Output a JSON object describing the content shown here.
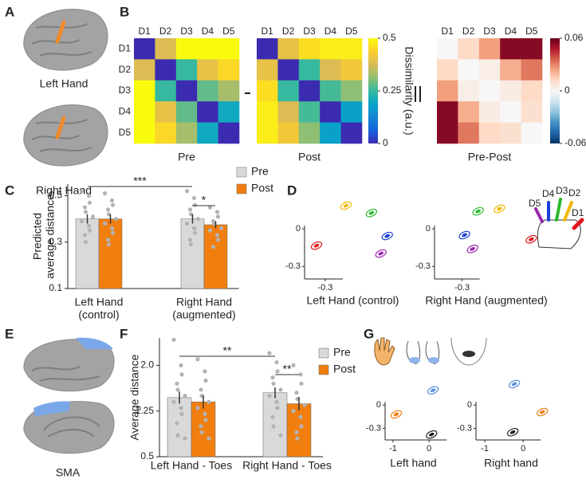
{
  "panel_letters": [
    "A",
    "B",
    "C",
    "D",
    "E",
    "F",
    "G"
  ],
  "brain_labels": [
    "Left Hand",
    "Right Hand",
    "SMA"
  ],
  "chart_data": [
    {
      "type": "heatmap",
      "title": "Pre",
      "categories": [
        "D1",
        "D2",
        "D3",
        "D4",
        "D5"
      ],
      "row_categories": [
        "D1",
        "D2",
        "D3",
        "D4",
        "D5"
      ],
      "values": [
        [
          0,
          0.38,
          0.5,
          0.5,
          0.5
        ],
        [
          0.38,
          0,
          0.25,
          0.4,
          0.45
        ],
        [
          0.5,
          0.25,
          0,
          0.28,
          0.33
        ],
        [
          0.5,
          0.4,
          0.28,
          0,
          0.2
        ],
        [
          0.5,
          0.45,
          0.33,
          0.2,
          0
        ]
      ],
      "zlim": [
        0,
        0.5
      ],
      "colormap": [
        "#3b2bb0",
        "#1463e0",
        "#1485d4",
        "#08a5c8",
        "#36b99e",
        "#92bf73",
        "#d9ba56",
        "#fcce2e",
        "#f9fb0e"
      ]
    },
    {
      "type": "heatmap",
      "title": "Post",
      "categories": [
        "D1",
        "D2",
        "D3",
        "D4",
        "D5"
      ],
      "values": [
        [
          0,
          0.4,
          0.46,
          0.48,
          0.48
        ],
        [
          0.4,
          0,
          0.25,
          0.38,
          0.42
        ],
        [
          0.46,
          0.25,
          0,
          0.26,
          0.31
        ],
        [
          0.48,
          0.38,
          0.26,
          0,
          0.18
        ],
        [
          0.48,
          0.42,
          0.31,
          0.18,
          0
        ]
      ],
      "zlim": [
        0,
        0.5
      ],
      "zticks": [
        0,
        0.25,
        0.5
      ],
      "colorbar_label": "Dissimilarity (a.u.)",
      "colormap": [
        "#3b2bb0",
        "#1463e0",
        "#1485d4",
        "#08a5c8",
        "#36b99e",
        "#92bf73",
        "#d9ba56",
        "#fcce2e",
        "#f9fb0e"
      ]
    },
    {
      "type": "heatmap",
      "title": "Pre-Post",
      "categories": [
        "D1",
        "D2",
        "D3",
        "D4",
        "D5"
      ],
      "values": [
        [
          0,
          0.012,
          0.025,
          0.055,
          0.055
        ],
        [
          0.012,
          0,
          0.004,
          0.022,
          0.032
        ],
        [
          0.025,
          0.004,
          0,
          0.005,
          0.012
        ],
        [
          0.055,
          0.022,
          0.005,
          0,
          0.01
        ],
        [
          0.055,
          0.032,
          0.012,
          0.01,
          0
        ]
      ],
      "zlim": [
        -0.06,
        0.06
      ],
      "zticks": [
        -0.06,
        0,
        0.06
      ],
      "colormap": [
        "#053061",
        "#2166ac",
        "#4393c3",
        "#92c5de",
        "#d1e5f0",
        "#f7f7f7",
        "#fddbc7",
        "#f4a582",
        "#d6604d",
        "#b2182b",
        "#67001f"
      ]
    },
    {
      "type": "bar",
      "ylabel": [
        "Predicted",
        "average distance"
      ],
      "categories": [
        [
          "Left Hand",
          "(control)"
        ],
        [
          "Right Hand",
          "(augmented)"
        ]
      ],
      "series": [
        {
          "name": "Pre",
          "color": "#d9d9d9",
          "values": [
            0.4,
            0.4
          ],
          "errors": [
            0.02,
            0.02
          ],
          "points": [
            [
              0.52,
              0.5,
              0.47,
              0.45,
              0.43,
              0.41,
              0.39,
              0.37,
              0.35,
              0.33,
              0.3
            ],
            [
              0.52,
              0.49,
              0.46,
              0.44,
              0.42,
              0.4,
              0.38,
              0.36,
              0.34,
              0.31,
              0.29
            ]
          ]
        },
        {
          "name": "Post",
          "color": "#f07f10",
          "values": [
            0.4,
            0.375
          ],
          "errors": [
            0.02,
            0.015
          ],
          "points": [
            [
              0.51,
              0.48,
              0.46,
              0.44,
              0.42,
              0.4,
              0.38,
              0.36,
              0.34,
              0.31,
              0.29
            ],
            [
              0.45,
              0.43,
              0.41,
              0.39,
              0.38,
              0.36,
              0.35,
              0.33,
              0.31,
              0.28
            ]
          ]
        }
      ],
      "ylim": [
        0.1,
        0.55
      ],
      "yticks": [
        0.1,
        0.3,
        0.5
      ],
      "annotations": [
        "***",
        "*"
      ]
    },
    {
      "type": "scatter",
      "title": "Left Hand (control)",
      "series": [
        {
          "name": "D1",
          "color": "#e0161b",
          "x": [
            -0.363
          ],
          "y": [
            -0.134
          ]
        },
        {
          "name": "D2",
          "color": "#f2b705",
          "x": [
            -0.15
          ],
          "y": [
            0.185
          ]
        },
        {
          "name": "D3",
          "color": "#2db82d",
          "x": [
            0.035
          ],
          "y": [
            0.127
          ]
        },
        {
          "name": "D4",
          "color": "#1a3fd6",
          "x": [
            0.15
          ],
          "y": [
            -0.057
          ]
        },
        {
          "name": "D5",
          "color": "#9b27b0",
          "x": [
            0.104
          ],
          "y": [
            -0.197
          ]
        }
      ],
      "xlim": [
        -0.45,
        0.25
      ],
      "ylim": [
        -0.4,
        0.3
      ],
      "xticks": [
        -0.3
      ],
      "yticks": [
        -0.3,
        0
      ]
    },
    {
      "type": "scatter",
      "title": "Right Hand (augmented)",
      "series": [
        {
          "color": "#e0161b",
          "x": [
            0.2
          ],
          "y": [
            -0.083
          ]
        },
        {
          "color": "#f2b705",
          "x": [
            -0.03
          ],
          "y": [
            0.16
          ]
        },
        {
          "color": "#2db82d",
          "x": [
            -0.185
          ],
          "y": [
            0.14
          ]
        },
        {
          "color": "#1a3fd6",
          "x": [
            -0.283
          ],
          "y": [
            -0.05
          ]
        },
        {
          "color": "#9b27b0",
          "x": [
            -0.225
          ],
          "y": [
            -0.16
          ]
        }
      ],
      "xlim": [
        -0.5,
        0.25
      ],
      "ylim": [
        -0.4,
        0.3
      ],
      "xticks": [
        -0.3
      ],
      "yticks": [
        -0.3,
        0
      ]
    },
    {
      "type": "bar",
      "ylabel": [
        "Average distance"
      ],
      "categories": [
        [
          "Left Hand - Toes"
        ],
        [
          "Right Hand - Toes"
        ]
      ],
      "series": [
        {
          "name": "Pre",
          "color": "#d9d9d9",
          "values": [
            1.47,
            1.55
          ],
          "errors": [
            0.1,
            0.09
          ],
          "points": [
            [
              2.42,
              2.0,
              1.85,
              1.7,
              1.6,
              1.5,
              1.4,
              1.3,
              1.2,
              1.05,
              0.85,
              0.8
            ],
            [
              2.2,
              2.05,
              1.9,
              1.8,
              1.7,
              1.6,
              1.5,
              1.4,
              1.3,
              1.15,
              1.0,
              0.85
            ]
          ]
        },
        {
          "name": "Post",
          "color": "#f07f10",
          "values": [
            1.4,
            1.37
          ],
          "errors": [
            0.11,
            0.11
          ],
          "points": [
            [
              2.1,
              1.9,
              1.75,
              1.6,
              1.5,
              1.4,
              1.3,
              1.2,
              1.1,
              1.0,
              0.9,
              0.8
            ],
            [
              2.0,
              1.85,
              1.7,
              1.55,
              1.45,
              1.35,
              1.25,
              1.15,
              1.0,
              0.9,
              0.8
            ]
          ]
        }
      ],
      "ylim": [
        0.5,
        2.45
      ],
      "yticks": [
        0.5,
        1.25,
        {
          "value": 2,
          "label": "2.0"
        }
      ],
      "annotations": [
        "**",
        "**"
      ]
    },
    {
      "type": "scatter",
      "title": "Left hand",
      "series": [
        {
          "color": "#f07f10",
          "x": [
            -0.91
          ],
          "y": [
            -0.12
          ]
        },
        {
          "color": "#5a8ee0",
          "x": [
            0.11
          ],
          "y": [
            0.19
          ]
        },
        {
          "color": "#222222",
          "x": [
            0.07
          ],
          "y": [
            -0.38
          ]
        }
      ],
      "xlim": [
        -1.22,
        0.35
      ],
      "ylim": [
        -0.45,
        0.3
      ],
      "xticks": [
        -1,
        0
      ],
      "yticks": [
        -0.3,
        0
      ]
    },
    {
      "type": "scatter",
      "title": "Right hand",
      "series": [
        {
          "color": "#f07f10",
          "x": [
            0.5
          ],
          "y": [
            -0.09
          ]
        },
        {
          "color": "#5a8ee0",
          "x": [
            -0.23
          ],
          "y": [
            0.27
          ]
        },
        {
          "color": "#222222",
          "x": [
            -0.27
          ],
          "y": [
            -0.35
          ]
        }
      ],
      "xlim": [
        -1.23,
        0.6
      ],
      "ylim": [
        -0.45,
        0.3
      ],
      "xticks": [
        -1,
        0
      ],
      "yticks": [
        -0.3,
        0
      ]
    }
  ]
}
